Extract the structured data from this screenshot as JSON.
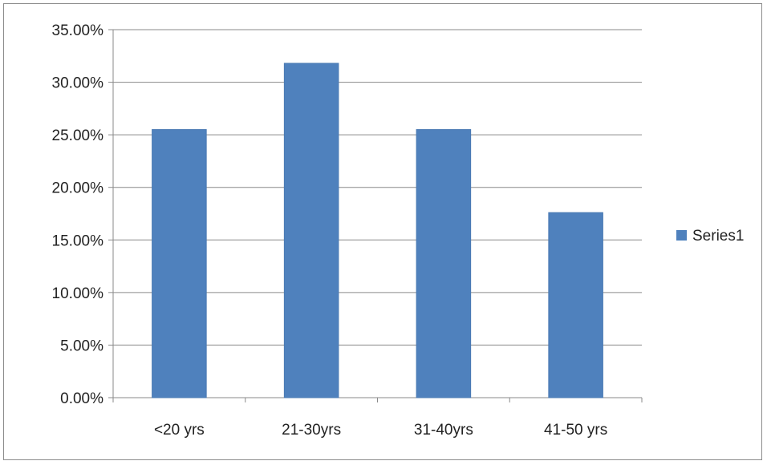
{
  "chart_data": {
    "type": "bar",
    "categories": [
      "<20 yrs",
      "21-30yrs",
      "31-40yrs",
      "41-50 yrs"
    ],
    "series": [
      {
        "name": "Series1",
        "values": [
          25.5,
          31.8,
          25.5,
          17.6
        ],
        "color": "#4f81bd"
      }
    ],
    "title": "",
    "xlabel": "",
    "ylabel": "",
    "ylim": [
      0,
      35
    ],
    "y_ticks": [
      "0.00%",
      "5.00%",
      "10.00%",
      "15.00%",
      "20.00%",
      "25.00%",
      "30.00%",
      "35.00%"
    ],
    "grid": true,
    "legend_position": "right"
  }
}
